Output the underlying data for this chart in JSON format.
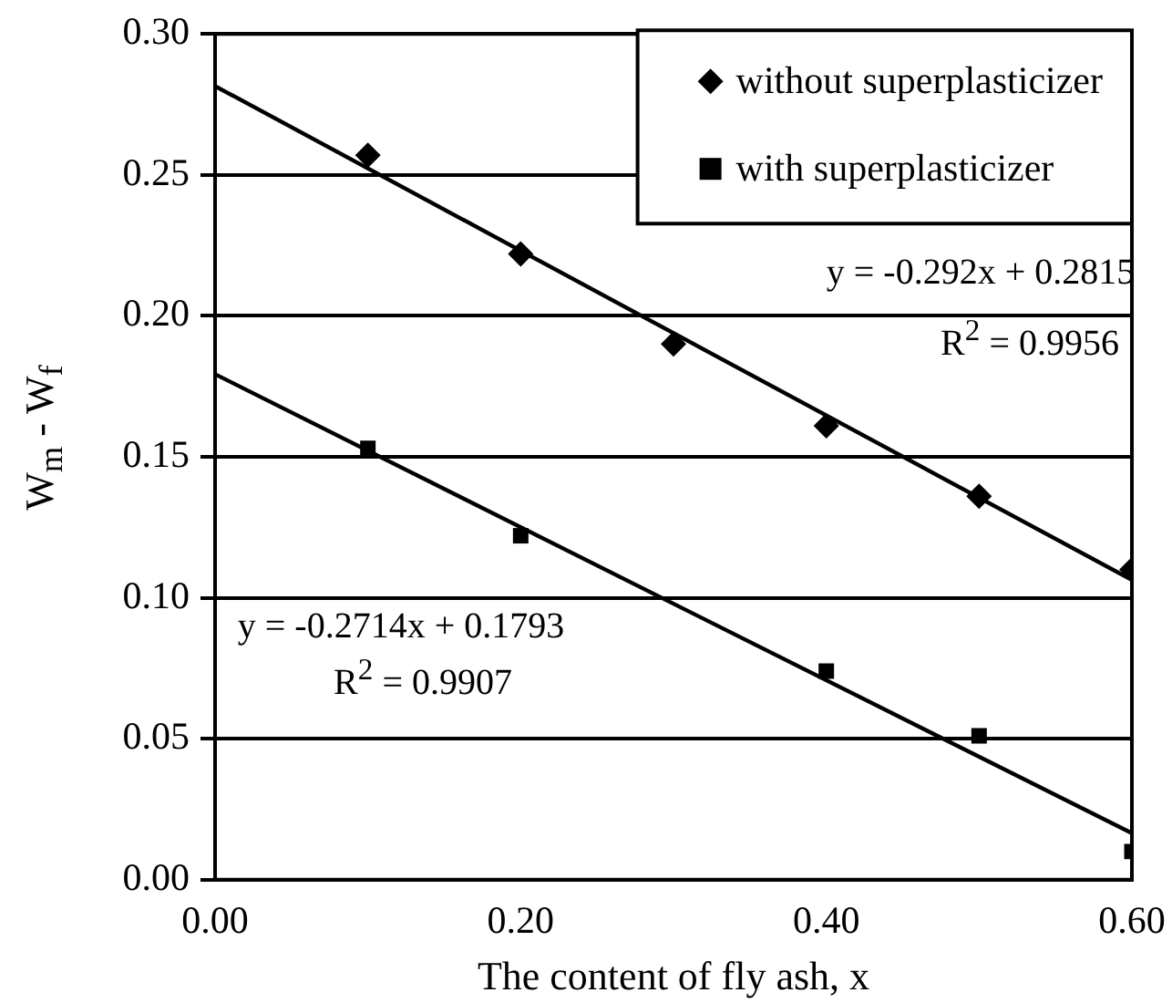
{
  "chart_data": {
    "type": "scatter",
    "xlabel": "The content of fly ash, x",
    "ylabel": "W$_{m}$ - W$_{f}$",
    "xlim": [
      0,
      0.6
    ],
    "xticks": [
      {
        "value": 0,
        "label": "0.00"
      },
      {
        "value": 0.2,
        "label": "0.20"
      },
      {
        "value": 0.4,
        "label": "0.40"
      },
      {
        "value": 0.6,
        "label": "0.60"
      }
    ],
    "ylim": [
      0,
      0.3
    ],
    "yticks": [
      {
        "value": 0,
        "label": "0.00"
      },
      {
        "value": 0.05,
        "label": "0.05"
      },
      {
        "value": 0.1,
        "label": "0.10"
      },
      {
        "value": 0.15,
        "label": "0.15"
      },
      {
        "value": 0.2,
        "label": "0.20"
      },
      {
        "value": 0.25,
        "label": "0.25"
      },
      {
        "value": 0.3,
        "label": "0.30"
      }
    ],
    "grid": "y",
    "legend": "top right",
    "series": [
      {
        "name": "without superplasticizer",
        "marker": "diamond",
        "color": "#000000",
        "x": [
          0.1,
          0.2,
          0.3,
          0.4,
          0.5,
          0.6
        ],
        "values": [
          0.257,
          0.222,
          0.19,
          0.161,
          0.136,
          0.11
        ]
      },
      {
        "name": "with superplasticizer",
        "marker": "square",
        "color": "#000000",
        "x": [
          0.1,
          0.2,
          0.4,
          0.5,
          0.6
        ],
        "values": [
          0.153,
          0.122,
          0.074,
          0.051,
          0.01
        ]
      },
      {
        "type": "line",
        "marker": "none",
        "color": "#000000",
        "x": [
          0,
          0.6
        ],
        "values": [
          0.2815,
          0.1063
        ]
      },
      {
        "type": "line",
        "marker": "none",
        "color": "#000000",
        "x": [
          0,
          0.6
        ],
        "values": [
          0.1793,
          0.0165
        ]
      }
    ],
    "annotations": [
      "y = -0.292x + 0.2815",
      "R$^{2}$ = 0.9956",
      "y = -0.2714x + 0.1793",
      "R$^{2}$ = 0.9907"
    ]
  }
}
